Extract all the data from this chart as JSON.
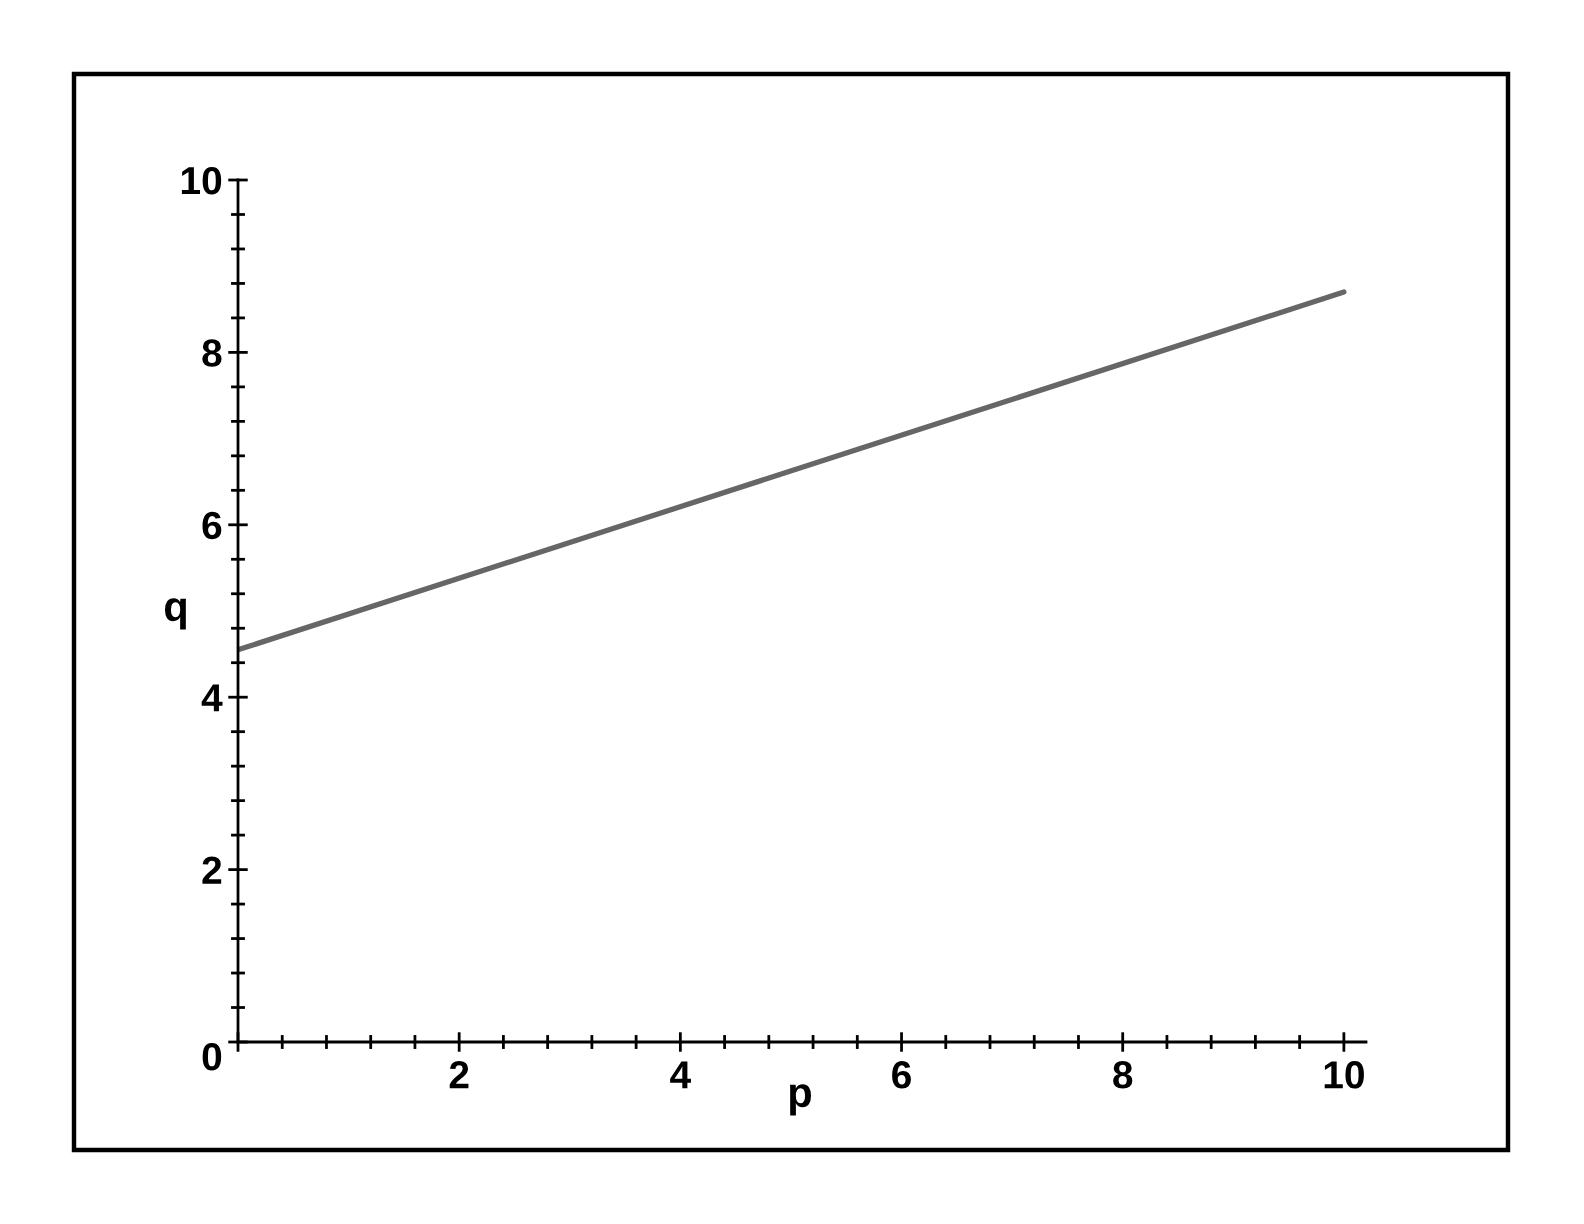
{
  "chart_data": {
    "type": "line",
    "xlabel": "p",
    "ylabel": "q",
    "x": [
      0,
      10
    ],
    "series": [
      {
        "color": "#666666",
        "values": [
          4.55,
          8.7
        ]
      }
    ],
    "xlim": [
      0,
      10.2
    ],
    "ylim": [
      0,
      10
    ],
    "xticks": [
      {
        "value": 0,
        "label": null
      },
      2,
      4,
      6,
      8,
      10
    ],
    "yticks": [
      0,
      2,
      4,
      6,
      8,
      10
    ]
  }
}
